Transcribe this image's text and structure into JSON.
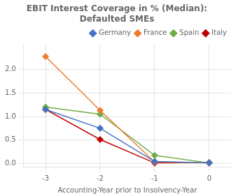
{
  "chart_data": {
    "type": "line",
    "title": "EBIT Interest Coverage in % (Median):\nDefaulted SMEs",
    "xlabel": "Accounting-Year prior to Insolvency-Year",
    "x": [
      -3,
      -2,
      -1,
      0
    ],
    "series": [
      {
        "name": "Germany",
        "color": "#4472C4",
        "marker": "diamond",
        "values": [
          1.15,
          0.75,
          0.04,
          0.01
        ]
      },
      {
        "name": "France",
        "color": "#ED7D31",
        "marker": "diamond",
        "values": [
          2.28,
          1.13,
          0.03,
          0.01
        ]
      },
      {
        "name": "Spain",
        "color": "#70AD47",
        "marker": "diamond",
        "values": [
          1.2,
          1.05,
          0.17,
          0.01
        ]
      },
      {
        "name": "Italy",
        "color": "#C00000",
        "marker": "diamond",
        "values": [
          1.15,
          0.51,
          0.01,
          0.02
        ]
      }
    ],
    "xlim": [
      -3.4,
      0.4
    ],
    "ylim": [
      -0.07,
      2.55
    ],
    "xticks": [
      -3,
      -2,
      -1,
      0
    ],
    "yticks": [
      {
        "value": 0,
        "label": "0.0"
      },
      0.5,
      {
        "value": 1,
        "label": "1.0"
      },
      1.5,
      {
        "value": 2,
        "label": "2.0"
      }
    ],
    "grid": true,
    "legend": "upper right"
  }
}
